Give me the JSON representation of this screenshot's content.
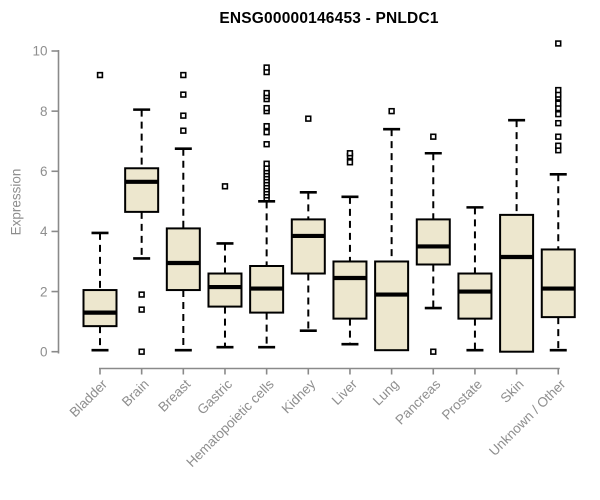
{
  "page": {
    "title": "ENSG00000146453 - PNLDC1"
  },
  "chart_data": {
    "type": "boxplot",
    "title": "ENSG00000146453 - PNLDC1",
    "ylabel": "Expression",
    "xlabel": "",
    "ylim": [
      0,
      10
    ],
    "yticks": [
      "0",
      "2",
      "4",
      "6",
      "8",
      "10"
    ],
    "ytick_values": [
      0,
      2,
      4,
      6,
      8,
      10
    ],
    "grid": false,
    "legend": "none",
    "axis_color": "#8a8a8a",
    "label_color": "#8e8e8e",
    "box_fill": "#ede7ce",
    "box_stroke": "#000000",
    "outlier_marker": "open-square",
    "categories": [
      "Bladder",
      "Brain",
      "Breast",
      "Gastric",
      "Hematopoietic cells",
      "Kidney",
      "Liver",
      "Lung",
      "Pancreas",
      "Prostate",
      "Skin",
      "Unknown / Other"
    ],
    "series": [
      {
        "category": "Bladder",
        "whisker_low": 0.05,
        "q1": 0.85,
        "median": 1.3,
        "q3": 2.05,
        "whisker_high": 3.95,
        "outliers": [
          9.2
        ]
      },
      {
        "category": "Brain",
        "whisker_low": 3.1,
        "q1": 4.65,
        "median": 5.65,
        "q3": 6.1,
        "whisker_high": 8.05,
        "outliers": [
          1.9,
          1.4,
          0.0
        ]
      },
      {
        "category": "Breast",
        "whisker_low": 0.05,
        "q1": 2.05,
        "median": 2.95,
        "q3": 4.1,
        "whisker_high": 6.75,
        "outliers": [
          7.35,
          7.85,
          8.55,
          9.2
        ]
      },
      {
        "category": "Gastric",
        "whisker_low": 0.15,
        "q1": 1.5,
        "median": 2.15,
        "q3": 2.6,
        "whisker_high": 3.6,
        "outliers": [
          5.5
        ]
      },
      {
        "category": "Hematopoietic cells",
        "whisker_low": 0.15,
        "q1": 1.3,
        "median": 2.1,
        "q3": 2.85,
        "whisker_high": 5.0,
        "outliers": [
          5.1,
          5.2,
          5.3,
          5.4,
          5.5,
          5.6,
          5.7,
          5.8,
          5.9,
          6.0,
          6.1,
          6.25,
          6.9,
          7.3,
          7.5,
          8.0,
          8.1,
          8.4,
          8.5,
          8.6,
          9.3,
          9.45
        ]
      },
      {
        "category": "Kidney",
        "whisker_low": 0.7,
        "q1": 2.6,
        "median": 3.85,
        "q3": 4.4,
        "whisker_high": 5.3,
        "outliers": [
          7.75
        ]
      },
      {
        "category": "Liver",
        "whisker_low": 0.25,
        "q1": 1.1,
        "median": 2.45,
        "q3": 3.0,
        "whisker_high": 5.15,
        "outliers": [
          6.3,
          6.5,
          6.6
        ]
      },
      {
        "category": "Lung",
        "whisker_low": 0.05,
        "q1": 0.05,
        "median": 1.9,
        "q3": 3.0,
        "whisker_high": 7.4,
        "outliers": [
          8.0
        ]
      },
      {
        "category": "Pancreas",
        "whisker_low": 1.45,
        "q1": 2.9,
        "median": 3.5,
        "q3": 4.4,
        "whisker_high": 6.6,
        "outliers": [
          0.0,
          7.15
        ]
      },
      {
        "category": "Prostate",
        "whisker_low": 0.05,
        "q1": 1.1,
        "median": 2.0,
        "q3": 2.6,
        "whisker_high": 4.8,
        "outliers": []
      },
      {
        "category": "Skin",
        "whisker_low": 0.0,
        "q1": 0.0,
        "median": 3.15,
        "q3": 4.55,
        "whisker_high": 7.7,
        "outliers": []
      },
      {
        "category": "Unknown / Other",
        "whisker_low": 0.05,
        "q1": 1.15,
        "median": 2.1,
        "q3": 3.4,
        "whisker_high": 5.9,
        "outliers": [
          6.7,
          6.85,
          7.15,
          7.6,
          7.9,
          8.1,
          8.25,
          8.45,
          8.55,
          8.7,
          10.25
        ]
      }
    ]
  }
}
